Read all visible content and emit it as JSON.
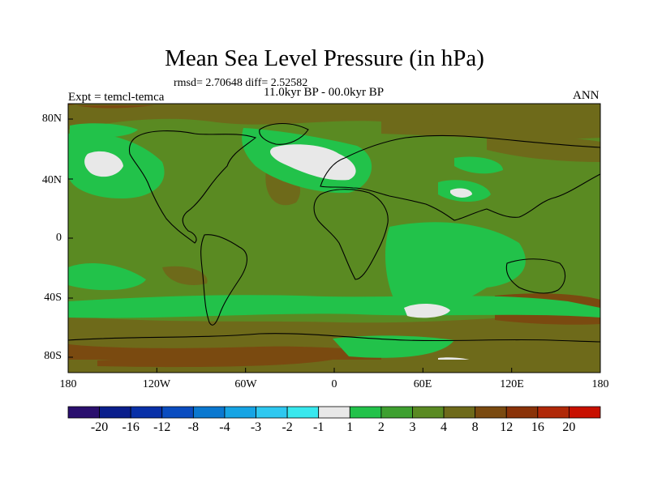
{
  "figure": {
    "title": "Mean Sea Level Pressure (in hPa)",
    "stats": "rmsd= 2.70648 diff= 2.52582",
    "period": "11.0kyr BP - 00.0kyr BP",
    "experiment": "Expt = temcl-temca",
    "season": "ANN"
  },
  "map": {
    "lat_ticks": [
      "80N",
      "40N",
      "0",
      "40S",
      "80S"
    ],
    "lon_ticks": [
      "180",
      "120W",
      "60W",
      "0",
      "60E",
      "120E",
      "180"
    ],
    "base_color": "#5a8a22"
  },
  "colorbar": {
    "labels": [
      "-20",
      "-16",
      "-12",
      "-8",
      "-4",
      "-3",
      "-2",
      "-1",
      "1",
      "2",
      "3",
      "4",
      "8",
      "12",
      "16",
      "20"
    ],
    "colors": [
      "#2a0f6e",
      "#0a1e8c",
      "#0830a8",
      "#0a4cc0",
      "#0a78d0",
      "#16a4e4",
      "#2ec8f0",
      "#38e8ee",
      "#e8e8e8",
      "#22c24a",
      "#3ea030",
      "#5a8a22",
      "#6e6a1a",
      "#7a4a10",
      "#8a3208",
      "#b02808",
      "#c81000"
    ]
  }
}
